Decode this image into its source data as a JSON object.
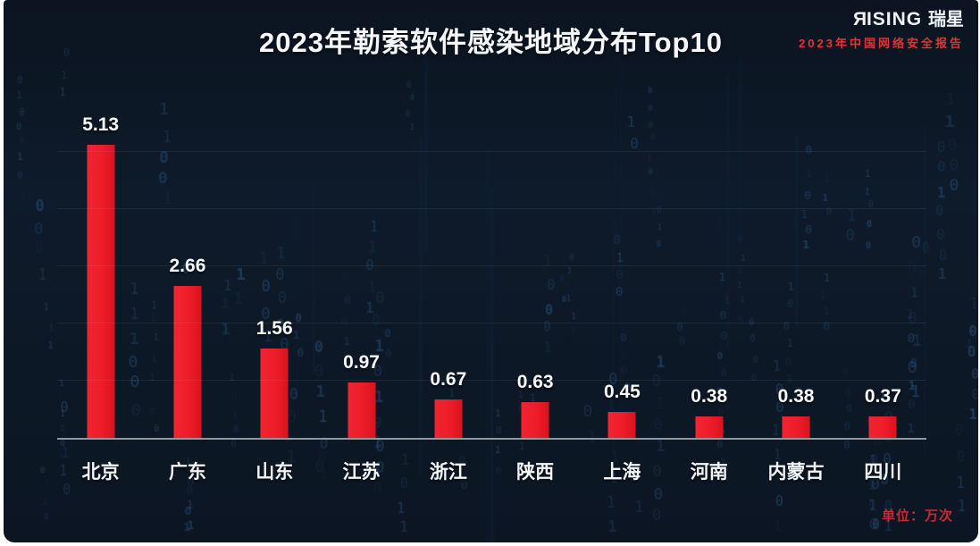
{
  "title": "2023年勒索软件感染地域分布Top10",
  "brand": {
    "logo_r": "R",
    "logo_rest": "ISING",
    "logo_cn": "瑞星",
    "subtitle": "2023年中国网络安全报告"
  },
  "unit_note": "单位：万次",
  "chart_data": {
    "type": "bar",
    "title": "2023年勒索软件感染地域分布Top10",
    "categories": [
      "北京",
      "广东",
      "山东",
      "江苏",
      "浙江",
      "陕西",
      "上海",
      "河南",
      "内蒙古",
      "四川"
    ],
    "values": [
      5.13,
      2.66,
      1.56,
      0.97,
      0.67,
      0.63,
      0.45,
      0.38,
      0.38,
      0.37
    ],
    "unit": "万次",
    "xlabel": "",
    "ylabel": "",
    "ylim": [
      0,
      5.5
    ],
    "grid": true,
    "gridline_step": 1,
    "legend": "none",
    "bar_color": "#ee1c28",
    "background_color": "#0d1826",
    "label_color": "#f5f7fa"
  }
}
